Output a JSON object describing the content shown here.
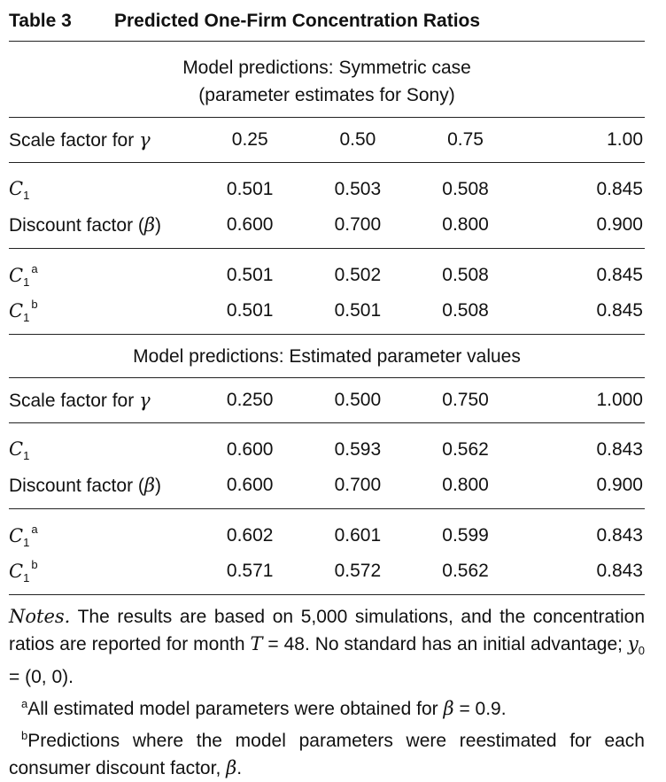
{
  "table": {
    "label": "Table 3",
    "title": "Predicted One-Firm Concentration Ratios"
  },
  "section1": {
    "heading_line1": "Model predictions: Symmetric case",
    "heading_line2": "(parameter estimates for Sony)",
    "scale_row": {
      "label": "Scale factor for ",
      "symbol": "γ",
      "values": [
        "0.25",
        "0.50",
        "0.75",
        "1.00"
      ]
    },
    "c1_row": {
      "symbol": "C",
      "subscript": "1",
      "values": [
        "0.501",
        "0.503",
        "0.508",
        "0.845"
      ]
    },
    "discount_row": {
      "label": "Discount factor (",
      "symbol": "β",
      "label_end": ")",
      "values": [
        "0.600",
        "0.700",
        "0.800",
        "0.900"
      ]
    },
    "c1a_row": {
      "symbol": "C",
      "subscript": "1",
      "superscript": "a",
      "values": [
        "0.501",
        "0.502",
        "0.508",
        "0.845"
      ]
    },
    "c1b_row": {
      "symbol": "C",
      "subscript": "1",
      "superscript": "b",
      "values": [
        "0.501",
        "0.501",
        "0.508",
        "0.845"
      ]
    }
  },
  "section2": {
    "heading": "Model predictions: Estimated parameter values",
    "scale_row": {
      "label": "Scale factor for ",
      "symbol": "γ",
      "values": [
        "0.250",
        "0.500",
        "0.750",
        "1.000"
      ]
    },
    "c1_row": {
      "symbol": "C",
      "subscript": "1",
      "values": [
        "0.600",
        "0.593",
        "0.562",
        "0.843"
      ]
    },
    "discount_row": {
      "label": "Discount factor (",
      "symbol": "β",
      "label_end": ")",
      "values": [
        "0.600",
        "0.700",
        "0.800",
        "0.900"
      ]
    },
    "c1a_row": {
      "symbol": "C",
      "subscript": "1",
      "superscript": "a",
      "values": [
        "0.602",
        "0.601",
        "0.599",
        "0.843"
      ]
    },
    "c1b_row": {
      "symbol": "C",
      "subscript": "1",
      "superscript": "b",
      "values": [
        "0.571",
        "0.572",
        "0.562",
        "0.843"
      ]
    }
  },
  "notes": {
    "lead": "Notes.",
    "text1": " The results are based on 5,000 simulations, and the concentration ratios are reported for month ",
    "T_symbol": "T",
    "text2": " = 48. No standard has an initial advantage; ",
    "y_symbol": "y",
    "y_sub": "0",
    "text3": " = (0, 0).",
    "fn_a_mark": "a",
    "fn_a_text": "All estimated model parameters were obtained for ",
    "fn_a_beta": "β",
    "fn_a_end": " = 0.9.",
    "fn_b_mark": "b",
    "fn_b_text": "Predictions where the model parameters were reestimated for each consumer discount factor, ",
    "fn_b_beta": "β",
    "fn_b_end": "."
  }
}
